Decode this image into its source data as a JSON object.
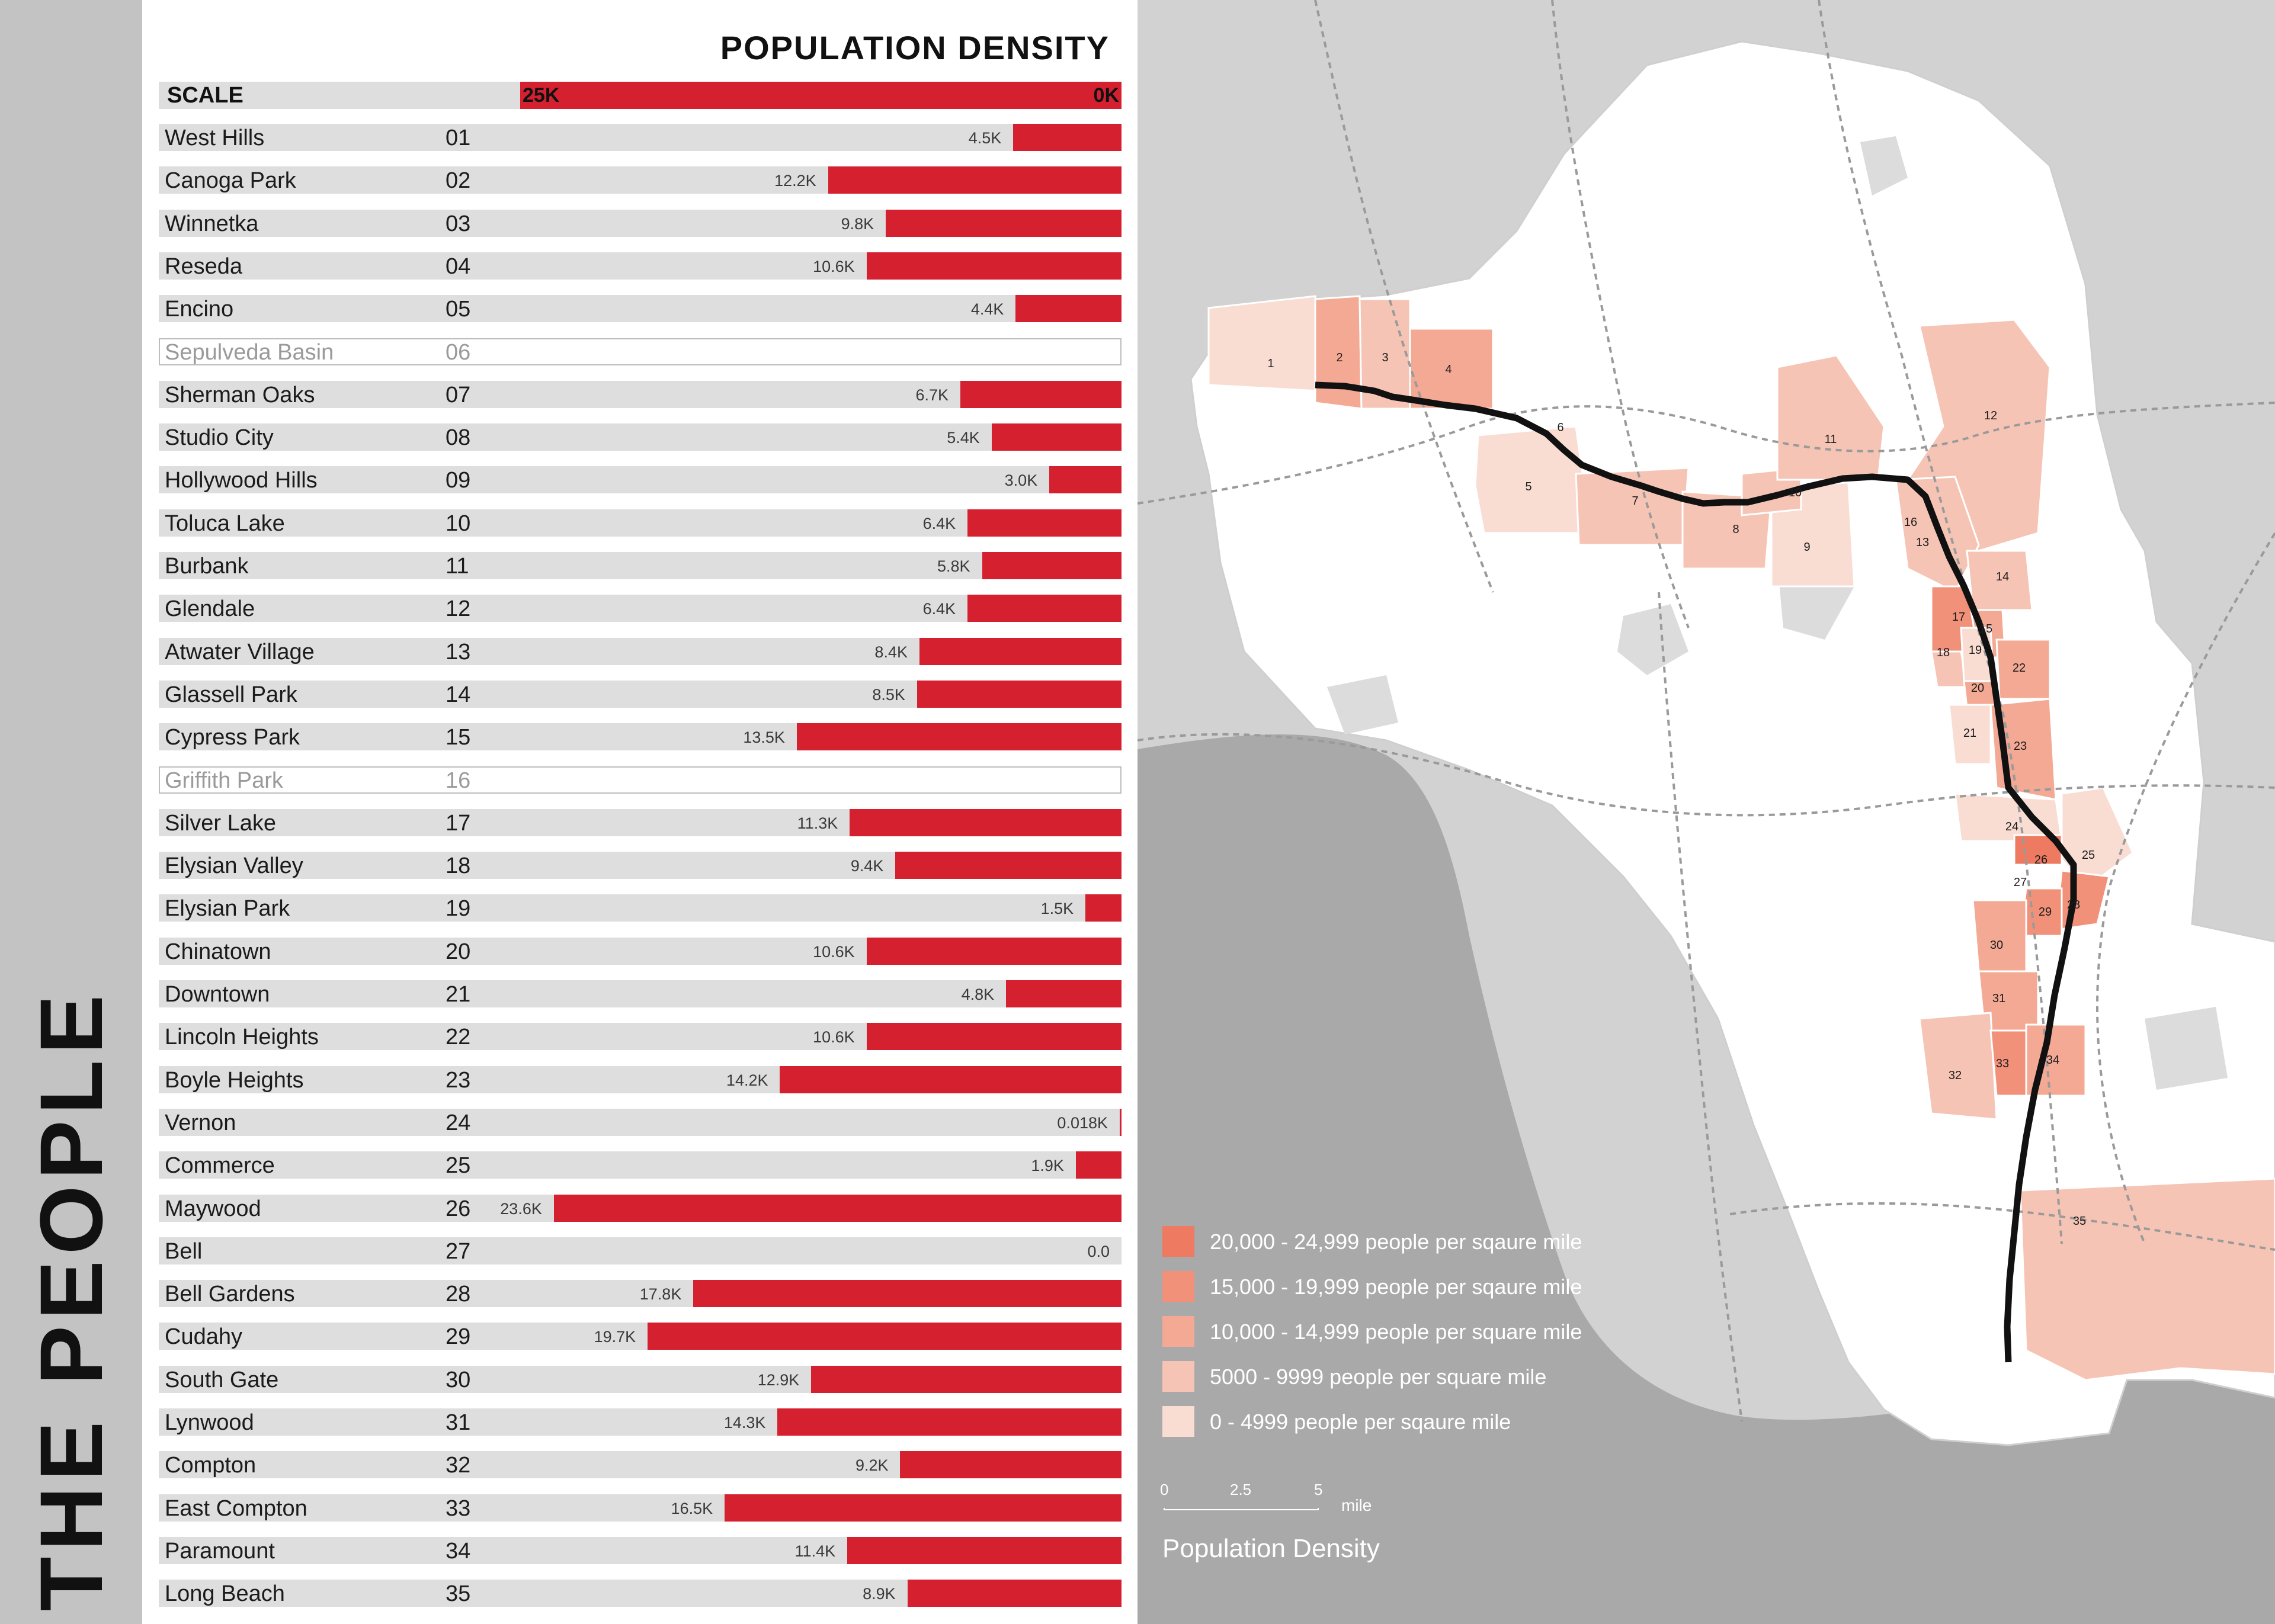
{
  "side_title": "THE PEOPLE",
  "chart_data": {
    "type": "bar",
    "title": "POPULATION DENSITY",
    "scale": {
      "label": "SCALE",
      "max_label": "25K",
      "min_label": "0K",
      "max": 25,
      "min": 0
    },
    "unit": "thousand people per square mile",
    "rows": [
      {
        "name": "West Hills",
        "num": "01",
        "value": 4.5,
        "label": "4.5K"
      },
      {
        "name": "Canoga Park",
        "num": "02",
        "value": 12.2,
        "label": "12.2K"
      },
      {
        "name": "Winnetka",
        "num": "03",
        "value": 9.8,
        "label": "9.8K"
      },
      {
        "name": "Reseda",
        "num": "04",
        "value": 10.6,
        "label": "10.6K"
      },
      {
        "name": "Encino",
        "num": "05",
        "value": 4.4,
        "label": "4.4K"
      },
      {
        "name": "Sepulveda Basin",
        "num": "06",
        "value": null,
        "label": "",
        "park": true
      },
      {
        "name": "Sherman Oaks",
        "num": "07",
        "value": 6.7,
        "label": "6.7K"
      },
      {
        "name": "Studio City",
        "num": "08",
        "value": 5.4,
        "label": "5.4K"
      },
      {
        "name": "Hollywood Hills",
        "num": "09",
        "value": 3.0,
        "label": "3.0K"
      },
      {
        "name": "Toluca Lake",
        "num": "10",
        "value": 6.4,
        "label": "6.4K"
      },
      {
        "name": "Burbank",
        "num": "11",
        "value": 5.8,
        "label": "5.8K"
      },
      {
        "name": "Glendale",
        "num": "12",
        "value": 6.4,
        "label": "6.4K"
      },
      {
        "name": "Atwater Village",
        "num": "13",
        "value": 8.4,
        "label": "8.4K"
      },
      {
        "name": "Glassell Park",
        "num": "14",
        "value": 8.5,
        "label": "8.5K"
      },
      {
        "name": "Cypress Park",
        "num": "15",
        "value": 13.5,
        "label": "13.5K"
      },
      {
        "name": "Griffith Park",
        "num": "16",
        "value": null,
        "label": "",
        "park": true
      },
      {
        "name": "Silver Lake",
        "num": "17",
        "value": 11.3,
        "label": "11.3K"
      },
      {
        "name": "Elysian Valley",
        "num": "18",
        "value": 9.4,
        "label": "9.4K"
      },
      {
        "name": "Elysian Park",
        "num": "19",
        "value": 1.5,
        "label": "1.5K"
      },
      {
        "name": "Chinatown",
        "num": "20",
        "value": 10.6,
        "label": "10.6K"
      },
      {
        "name": "Downtown",
        "num": "21",
        "value": 4.8,
        "label": "4.8K"
      },
      {
        "name": "Lincoln Heights",
        "num": "22",
        "value": 10.6,
        "label": "10.6K"
      },
      {
        "name": "Boyle Heights",
        "num": "23",
        "value": 14.2,
        "label": "14.2K"
      },
      {
        "name": "Vernon",
        "num": "24",
        "value": 0.018,
        "label": "0.018K"
      },
      {
        "name": "Commerce",
        "num": "25",
        "value": 1.9,
        "label": "1.9K"
      },
      {
        "name": "Maywood",
        "num": "26",
        "value": 23.6,
        "label": "23.6K"
      },
      {
        "name": "Bell",
        "num": "27",
        "value": 0.0,
        "label": "0.0"
      },
      {
        "name": "Bell Gardens",
        "num": "28",
        "value": 17.8,
        "label": "17.8K"
      },
      {
        "name": "Cudahy",
        "num": "29",
        "value": 19.7,
        "label": "19.7K"
      },
      {
        "name": "South Gate",
        "num": "30",
        "value": 12.9,
        "label": "12.9K"
      },
      {
        "name": "Lynwood",
        "num": "31",
        "value": 14.3,
        "label": "14.3K"
      },
      {
        "name": "Compton",
        "num": "32",
        "value": 9.2,
        "label": "9.2K"
      },
      {
        "name": "East Compton",
        "num": "33",
        "value": 16.5,
        "label": "16.5K"
      },
      {
        "name": "Paramount",
        "num": "34",
        "value": 11.4,
        "label": "11.4K"
      },
      {
        "name": "Long Beach",
        "num": "35",
        "value": 8.9,
        "label": "8.9K"
      }
    ]
  },
  "map": {
    "legend": [
      {
        "label": "20,000 - 24,999 people per sqaure mile",
        "color": "#ee7a62"
      },
      {
        "label": "15,000 - 19,999 people per sqaure mile",
        "color": "#f1917a"
      },
      {
        "label": "10,000 - 14,999 people per square mile",
        "color": "#f3a993"
      },
      {
        "label": "5000 - 9999 people per square mile",
        "color": "#f6c4b4"
      },
      {
        "label": "0 - 4999 people per sqaure mile",
        "color": "#f9ddd3"
      }
    ],
    "scale_ticks": [
      "0",
      "2.5",
      "5"
    ],
    "scale_unit": "mile",
    "caption": "Population Density",
    "colors": {
      "land": "#ffffff",
      "ocean": "#a9a9a9",
      "background": "#d2d2d2",
      "route": "#111111",
      "bar": "#d4202f"
    }
  }
}
